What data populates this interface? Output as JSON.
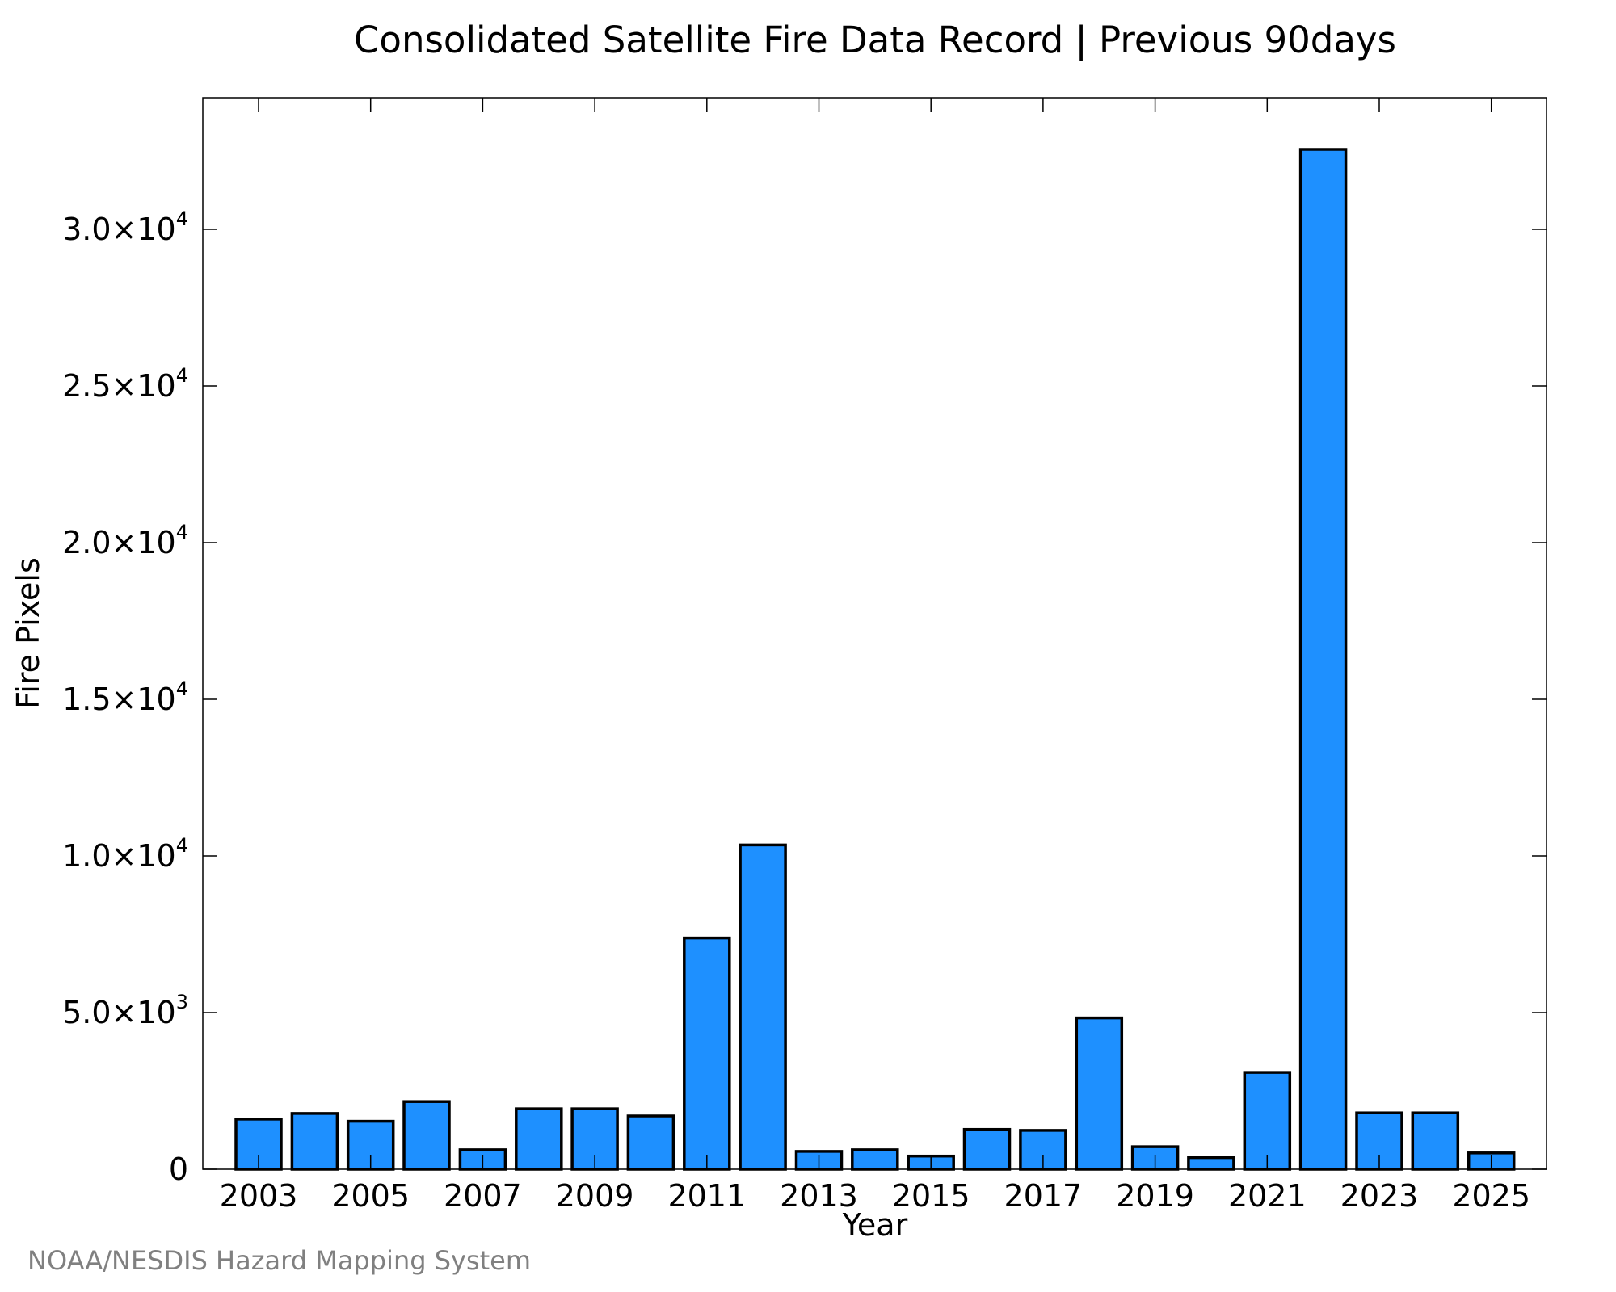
{
  "chart_data": {
    "type": "bar",
    "title": "Consolidated Satellite Fire Data Record | Previous 90days",
    "xlabel": "Year",
    "ylabel": "Fire Pixels",
    "credit": "NOAA/NESDIS Hazard Mapping System",
    "bar_color": "#1e90ff",
    "edge_color": "#000000",
    "ylim": [
      0,
      34200
    ],
    "grid": false,
    "categories": [
      2003,
      2004,
      2005,
      2006,
      2007,
      2008,
      2009,
      2010,
      2011,
      2012,
      2013,
      2014,
      2015,
      2016,
      2017,
      2018,
      2019,
      2020,
      2021,
      2022,
      2023,
      2024,
      2025
    ],
    "values": [
      1600,
      1780,
      1530,
      2160,
      620,
      1930,
      1930,
      1700,
      7380,
      10350,
      570,
      620,
      420,
      1270,
      1240,
      4830,
      720,
      370,
      3090,
      32550,
      1800,
      1800,
      520
    ],
    "x_tick_labels": [
      "2003",
      "2005",
      "2007",
      "2009",
      "2011",
      "2013",
      "2015",
      "2017",
      "2019",
      "2021",
      "2023",
      "2025"
    ],
    "y_ticks": [
      {
        "value": 0,
        "mantissa": "0",
        "exponent": ""
      },
      {
        "value": 5000,
        "mantissa": "5.0×10",
        "exponent": "3"
      },
      {
        "value": 10000,
        "mantissa": "1.0×10",
        "exponent": "4"
      },
      {
        "value": 15000,
        "mantissa": "1.5×10",
        "exponent": "4"
      },
      {
        "value": 20000,
        "mantissa": "2.0×10",
        "exponent": "4"
      },
      {
        "value": 25000,
        "mantissa": "2.5×10",
        "exponent": "4"
      },
      {
        "value": 30000,
        "mantissa": "3.0×10",
        "exponent": "4"
      }
    ]
  }
}
